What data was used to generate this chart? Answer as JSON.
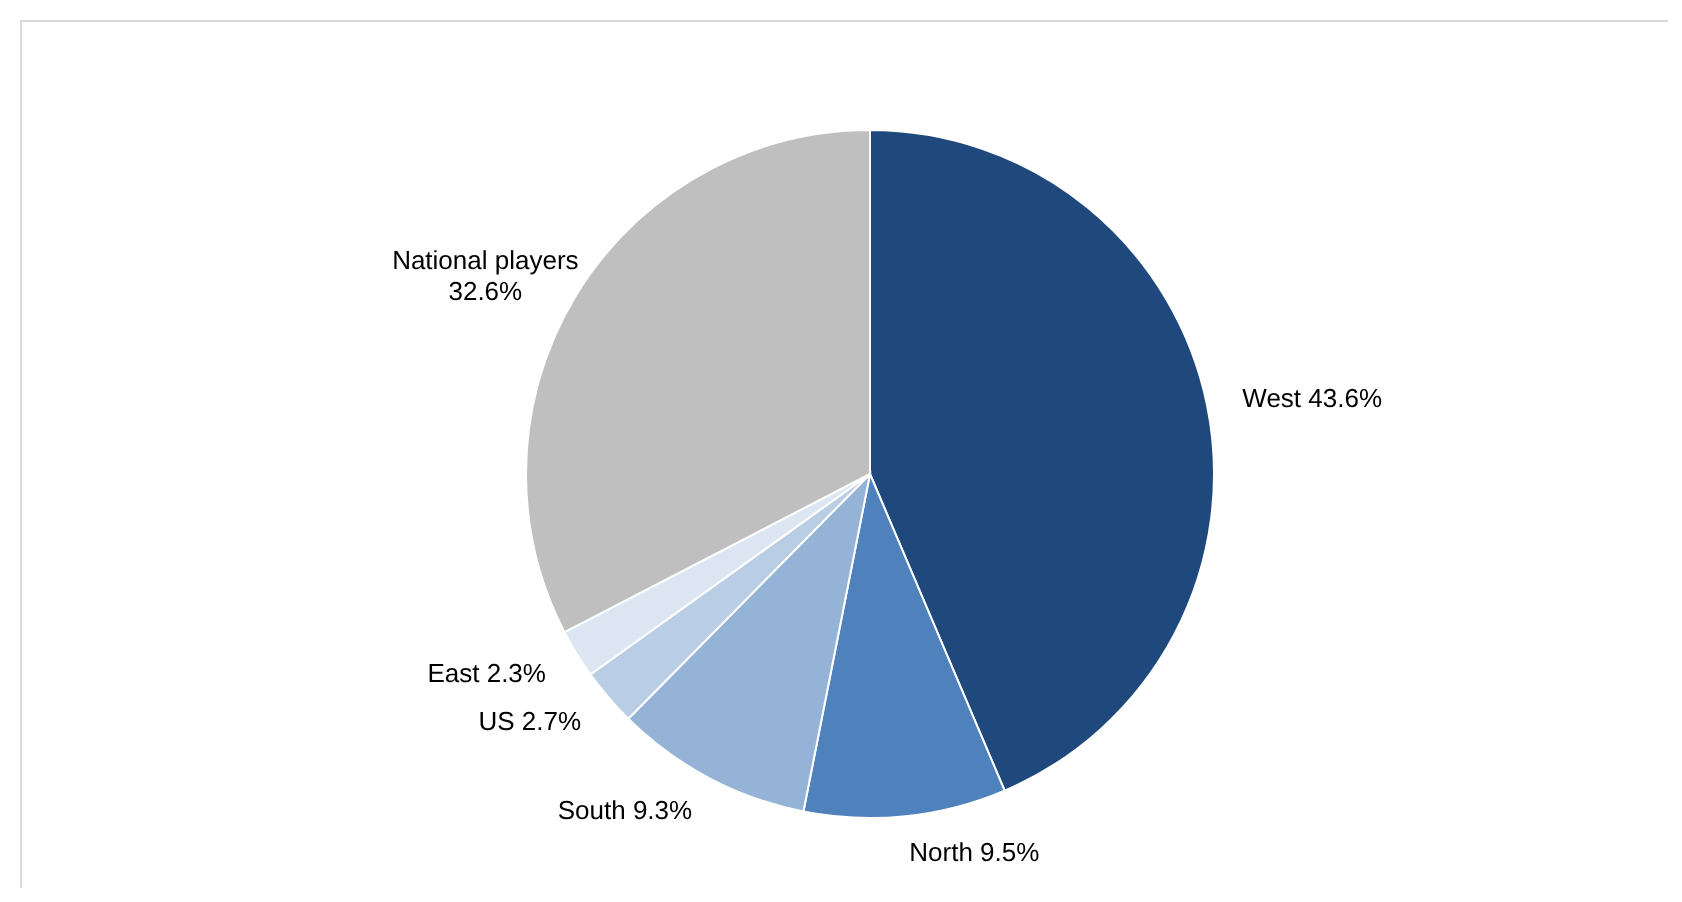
{
  "chart_data": {
    "type": "pie",
    "categories": [
      "West",
      "North",
      "South",
      "US",
      "East",
      "National players"
    ],
    "values": [
      43.6,
      9.5,
      9.3,
      2.7,
      2.3,
      32.6
    ],
    "value_labels": [
      "43.6%",
      "9.5%",
      "9.3%",
      "2.7%",
      "2.3%",
      "32.6%"
    ],
    "colors": [
      "#1f497d",
      "#4f81bd",
      "#95b3d7",
      "#b9cde5",
      "#dce6f2",
      "#bfbfbf"
    ]
  }
}
